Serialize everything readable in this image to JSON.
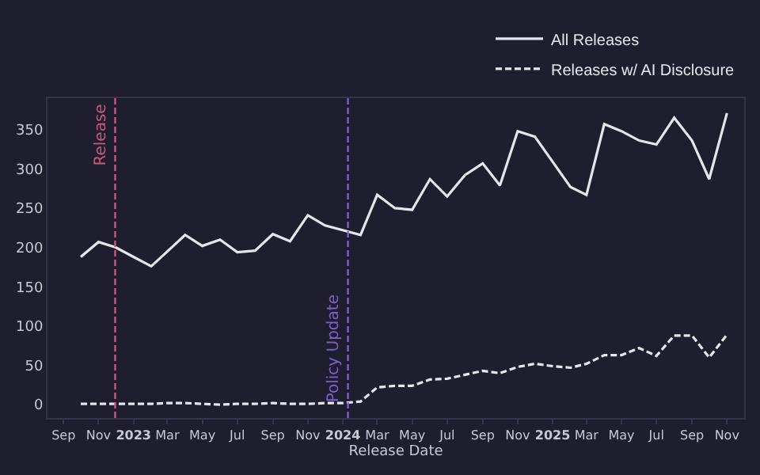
{
  "chart_data": {
    "type": "line",
    "x": [
      "2022-10",
      "2022-11",
      "2022-12",
      "2023-01",
      "2023-02",
      "2023-03",
      "2023-04",
      "2023-05",
      "2023-06",
      "2023-07",
      "2023-08",
      "2023-09",
      "2023-10",
      "2023-11",
      "2023-12",
      "2024-01",
      "2024-02",
      "2024-03",
      "2024-04",
      "2024-05",
      "2024-06",
      "2024-07",
      "2024-08",
      "2024-09",
      "2024-10",
      "2024-11",
      "2024-12",
      "2025-01",
      "2025-02",
      "2025-03",
      "2025-04",
      "2025-05",
      "2025-06",
      "2025-07",
      "2025-08",
      "2025-09",
      "2025-10",
      "2025-11"
    ],
    "series": [
      {
        "name": "All Releases",
        "color": "#e6e6ea",
        "line_style": "solid",
        "values": [
          188,
          207,
          200,
          188,
          176,
          195,
          216,
          202,
          210,
          194,
          196,
          217,
          208,
          241,
          228,
          222,
          216,
          267,
          250,
          248,
          287,
          265,
          292,
          307,
          279,
          348,
          341,
          309,
          277,
          267,
          357,
          348,
          336,
          331,
          365,
          336,
          287,
          371
        ]
      },
      {
        "name": "Releases w/ AI Disclosure",
        "color": "#e6e6ea",
        "line_style": "dashed",
        "values": [
          1,
          1,
          1,
          1,
          1,
          2,
          2,
          1,
          0,
          1,
          1,
          2,
          1,
          1,
          2,
          2,
          4,
          22,
          24,
          24,
          32,
          33,
          38,
          43,
          40,
          48,
          52,
          49,
          47,
          52,
          63,
          63,
          72,
          62,
          88,
          88,
          60,
          89
        ]
      }
    ],
    "xlabel": "Release Date",
    "xlim": [
      "2022-08-04",
      "2025-12-01"
    ],
    "xticks": [
      {
        "value": "2022-09",
        "label": "Sep"
      },
      {
        "value": "2022-11",
        "label": "Nov"
      },
      {
        "value": "2023-01",
        "label": "2023"
      },
      {
        "value": "2023-03",
        "label": "Mar"
      },
      {
        "value": "2023-05",
        "label": "May"
      },
      {
        "value": "2023-07",
        "label": "Jul"
      },
      {
        "value": "2023-09",
        "label": "Sep"
      },
      {
        "value": "2023-11",
        "label": "Nov"
      },
      {
        "value": "2024-01",
        "label": "2024"
      },
      {
        "value": "2024-03",
        "label": "Mar"
      },
      {
        "value": "2024-05",
        "label": "May"
      },
      {
        "value": "2024-07",
        "label": "Jul"
      },
      {
        "value": "2024-09",
        "label": "Sep"
      },
      {
        "value": "2024-11",
        "label": "Nov"
      },
      {
        "value": "2025-01",
        "label": "2025"
      },
      {
        "value": "2025-03",
        "label": "Mar"
      },
      {
        "value": "2025-05",
        "label": "May"
      },
      {
        "value": "2025-07",
        "label": "Jul"
      },
      {
        "value": "2025-09",
        "label": "Sep"
      },
      {
        "value": "2025-11",
        "label": "Nov"
      }
    ],
    "ylim": [
      -17,
      390
    ],
    "yticks": [
      0,
      50,
      100,
      150,
      200,
      250,
      300,
      350
    ],
    "ref_lines": [
      {
        "axis": "x",
        "value": "2022-11-30",
        "label": "Release",
        "color": "#c65a7e",
        "line_style": "dashed"
      },
      {
        "axis": "x",
        "value": "2024-01-10",
        "label": "Policy Update",
        "color": "#7b5fc4",
        "line_style": "dashed"
      }
    ],
    "grid": false,
    "legend": "top right",
    "marker": "none"
  }
}
